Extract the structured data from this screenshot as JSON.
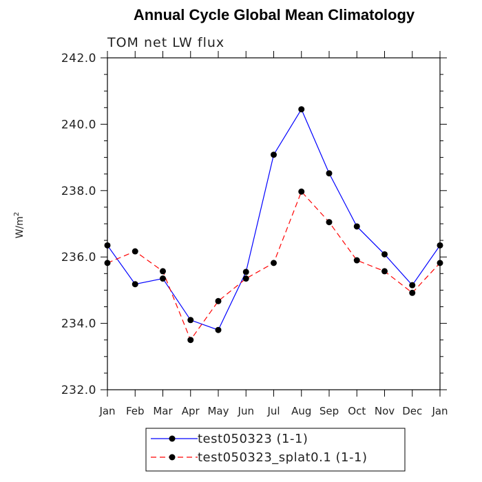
{
  "chart_data": {
    "type": "line",
    "title": "Annual Cycle Global Mean Climatology",
    "subtitle": "TOM net LW flux",
    "ylabel": "W/m",
    "ylabel_superscript": "2",
    "categories": [
      "Jan",
      "Feb",
      "Mar",
      "Apr",
      "May",
      "Jun",
      "Jul",
      "Aug",
      "Sep",
      "Oct",
      "Nov",
      "Dec",
      "Jan"
    ],
    "ylim": [
      232.0,
      242.0
    ],
    "yticks": [
      "232.0",
      "234.0",
      "236.0",
      "238.0",
      "240.0",
      "242.0"
    ],
    "grid": false,
    "legend_position": "bottom",
    "series": [
      {
        "name": "test050323 (1-1)",
        "color": "#0000ff",
        "dash": "solid",
        "marker": "filled-circle",
        "values": [
          236.35,
          235.18,
          235.35,
          234.1,
          233.8,
          235.55,
          239.08,
          240.45,
          238.52,
          236.92,
          236.08,
          235.15,
          236.35
        ]
      },
      {
        "name": "test050323_splat0.1 (1-1)",
        "color": "#ff0000",
        "dash": "dashed",
        "marker": "filled-circle",
        "values": [
          235.82,
          236.17,
          235.57,
          233.5,
          234.67,
          235.35,
          235.82,
          237.97,
          237.05,
          235.9,
          235.57,
          234.92,
          235.82
        ]
      }
    ]
  }
}
